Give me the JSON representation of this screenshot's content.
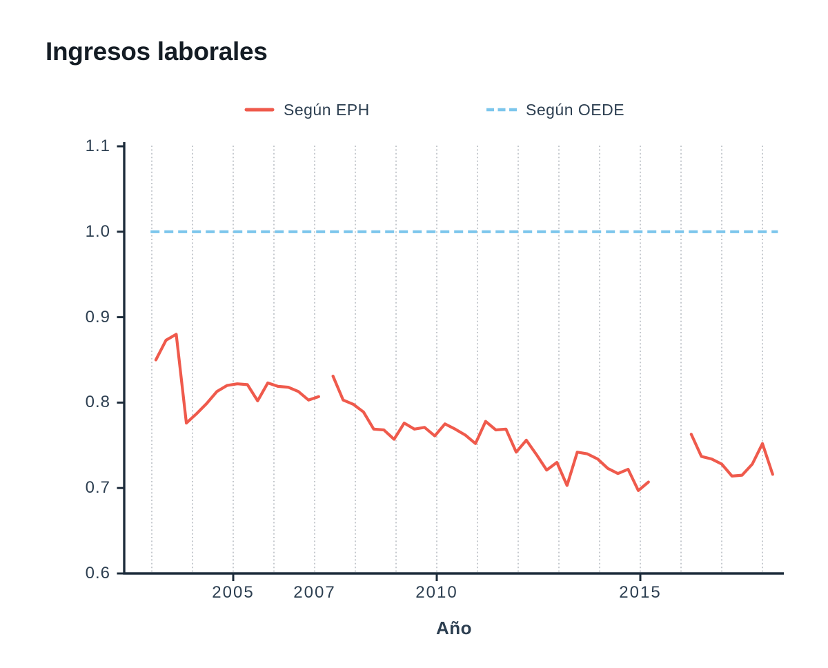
{
  "title": "Ingresos laborales",
  "legend": [
    {
      "label": "Según EPH",
      "series": "eph",
      "style": "solid"
    },
    {
      "label": "Según OEDE",
      "series": "oede",
      "style": "dashed"
    }
  ],
  "colors": {
    "eph": "#EF5A4C",
    "oede": "#7CC6EC",
    "axis": "#1D2C3B",
    "grid": "#A6ACB3",
    "tick_text": "#2C3E50",
    "title_text": "#141C24",
    "background": "#FFFFFF"
  },
  "chart_data": {
    "type": "line",
    "title": "Ingresos laborales",
    "xlabel": "Año",
    "ylabel": "",
    "ylim": [
      0.6,
      1.1
    ],
    "xlim": [
      2002.3,
      2018.5
    ],
    "grid": "vertical-dotted",
    "legend_position": "top",
    "y_ticks": [
      {
        "label": "1.1",
        "value": 1.1
      },
      {
        "label": "1.0",
        "value": 1.0
      },
      {
        "label": "0.9",
        "value": 0.9
      },
      {
        "label": "0.8",
        "value": 0.8
      },
      {
        "label": "0.7",
        "value": 0.7
      },
      {
        "label": "0.6",
        "value": 0.6
      }
    ],
    "x_tick_labels": [
      {
        "label": "2005",
        "value": 2005
      },
      {
        "label": "2007",
        "value": 2007
      },
      {
        "label": "2010",
        "value": 2010
      },
      {
        "label": "2015",
        "value": 2015
      }
    ],
    "x_tick_marks": [
      2005,
      2010,
      2015
    ],
    "gridline_years": [
      2003,
      2004,
      2005,
      2006,
      2007,
      2008,
      2009,
      2010,
      2011,
      2012,
      2013,
      2014,
      2015,
      2016,
      2017,
      2018
    ],
    "series": [
      {
        "name": "Según EPH",
        "color_key": "eph",
        "style": "solid",
        "segments": [
          [
            [
              2003.1,
              0.85
            ],
            [
              2003.35,
              0.873
            ],
            [
              2003.6,
              0.88
            ],
            [
              2003.85,
              0.776
            ],
            [
              2004.1,
              0.787
            ],
            [
              2004.35,
              0.799
            ],
            [
              2004.6,
              0.813
            ],
            [
              2004.85,
              0.82
            ],
            [
              2005.1,
              0.822
            ],
            [
              2005.35,
              0.821
            ],
            [
              2005.6,
              0.802
            ],
            [
              2005.85,
              0.823
            ],
            [
              2006.1,
              0.819
            ],
            [
              2006.35,
              0.818
            ],
            [
              2006.6,
              0.813
            ],
            [
              2006.85,
              0.803
            ],
            [
              2007.1,
              0.807
            ]
          ],
          [
            [
              2007.45,
              0.831
            ],
            [
              2007.7,
              0.803
            ],
            [
              2007.95,
              0.798
            ],
            [
              2008.2,
              0.789
            ],
            [
              2008.45,
              0.769
            ],
            [
              2008.7,
              0.768
            ],
            [
              2008.95,
              0.757
            ],
            [
              2009.2,
              0.776
            ],
            [
              2009.45,
              0.769
            ],
            [
              2009.7,
              0.771
            ],
            [
              2009.95,
              0.761
            ],
            [
              2010.2,
              0.775
            ],
            [
              2010.45,
              0.769
            ],
            [
              2010.7,
              0.762
            ],
            [
              2010.95,
              0.752
            ],
            [
              2011.2,
              0.778
            ],
            [
              2011.45,
              0.768
            ],
            [
              2011.7,
              0.769
            ],
            [
              2011.95,
              0.742
            ],
            [
              2012.2,
              0.756
            ],
            [
              2012.45,
              0.739
            ],
            [
              2012.7,
              0.721
            ],
            [
              2012.95,
              0.73
            ],
            [
              2013.2,
              0.703
            ],
            [
              2013.45,
              0.742
            ],
            [
              2013.7,
              0.74
            ],
            [
              2013.95,
              0.734
            ],
            [
              2014.2,
              0.723
            ],
            [
              2014.45,
              0.717
            ],
            [
              2014.7,
              0.722
            ],
            [
              2014.95,
              0.697
            ],
            [
              2015.2,
              0.707
            ]
          ],
          [
            [
              2016.25,
              0.763
            ],
            [
              2016.5,
              0.737
            ],
            [
              2016.75,
              0.734
            ],
            [
              2017.0,
              0.728
            ],
            [
              2017.25,
              0.714
            ],
            [
              2017.5,
              0.715
            ],
            [
              2017.75,
              0.728
            ],
            [
              2018.0,
              0.752
            ],
            [
              2018.25,
              0.716
            ]
          ]
        ]
      },
      {
        "name": "Según OEDE",
        "color_key": "oede",
        "style": "dashed",
        "segments": [
          [
            [
              2002.97,
              1.0
            ],
            [
              2018.38,
              1.0
            ]
          ]
        ]
      }
    ]
  }
}
